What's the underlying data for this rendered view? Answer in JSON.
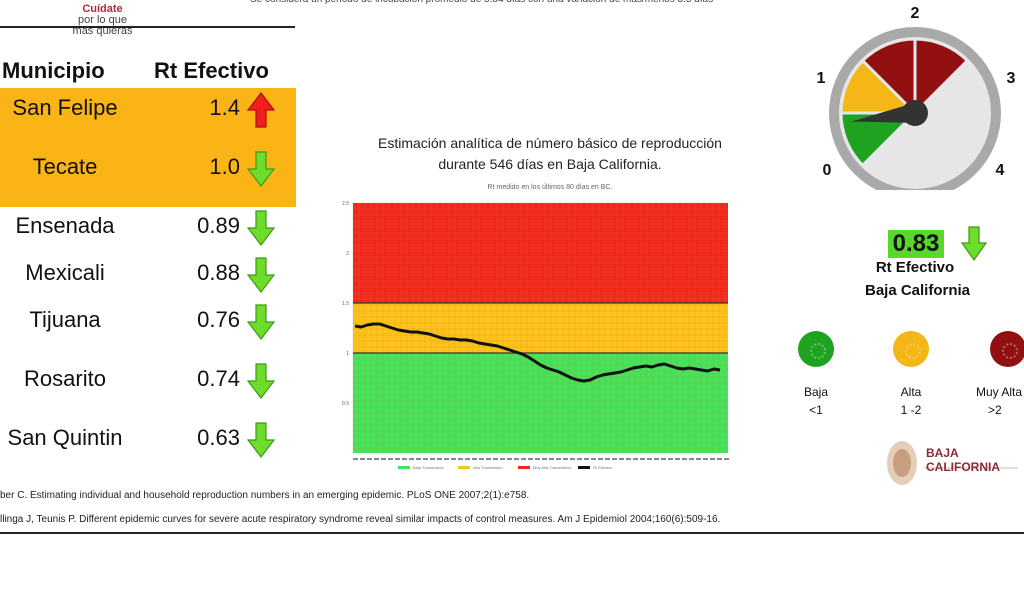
{
  "header": {
    "note": "Se considera un periodo de incubación promedio de 5.84 días con una variación de más/menos 3.5 días",
    "logo_line1": "Cuídate",
    "logo_line2": "por lo que",
    "logo_line3": "más quieras"
  },
  "table": {
    "col_municipio": "Municipio",
    "col_rt": "Rt Efectivo",
    "rows": [
      {
        "name": "San Felipe",
        "rt": "1.4",
        "trend": "up"
      },
      {
        "name": "Tecate",
        "rt": "1.0",
        "trend": "down"
      },
      {
        "name": "Ensenada",
        "rt": "0.89",
        "trend": "down"
      },
      {
        "name": "Mexicali",
        "rt": "0.88",
        "trend": "down"
      },
      {
        "name": "Tijuana",
        "rt": "0.76",
        "trend": "down"
      },
      {
        "name": "Rosarito",
        "rt": "0.74",
        "trend": "down"
      },
      {
        "name": "San Quintin",
        "rt": "0.63",
        "trend": "down"
      }
    ]
  },
  "chart_data": {
    "type": "line",
    "title_line1": "Estimación analítica de número básico de reproducción",
    "title_line2": "durante 546 días en Baja California.",
    "subtitle": "Rt medido en los últimos 80 días en BC.",
    "ylim": [
      0,
      2.5
    ],
    "yticks": [
      "0.5",
      "1",
      "1.5",
      "2",
      "2.5"
    ],
    "bands": [
      {
        "from": 0,
        "to": 1,
        "color": "#44e35b",
        "name": "Baja Transmisión"
      },
      {
        "from": 1,
        "to": 1.5,
        "color": "#ffc21a",
        "name": "Alta Transmisión"
      },
      {
        "from": 1.5,
        "to": 2.5,
        "color": "#f4271f",
        "name": "Muy Alta Transmisión"
      }
    ],
    "series": [
      {
        "name": "Rt Efectivo",
        "values": [
          1.27,
          1.26,
          1.28,
          1.29,
          1.29,
          1.27,
          1.25,
          1.23,
          1.22,
          1.21,
          1.21,
          1.2,
          1.19,
          1.17,
          1.15,
          1.14,
          1.14,
          1.13,
          1.13,
          1.12,
          1.1,
          1.09,
          1.08,
          1.07,
          1.05,
          1.03,
          1.01,
          0.99,
          0.96,
          0.92,
          0.88,
          0.85,
          0.83,
          0.81,
          0.78,
          0.75,
          0.73,
          0.72,
          0.73,
          0.76,
          0.78,
          0.79,
          0.8,
          0.81,
          0.83,
          0.85,
          0.86,
          0.87,
          0.86,
          0.88,
          0.89,
          0.87,
          0.85,
          0.84,
          0.85,
          0.84,
          0.83,
          0.82,
          0.84,
          0.83
        ]
      }
    ],
    "grid": true,
    "legend": "bottom"
  },
  "gauge": {
    "labels": [
      "0",
      "1",
      "2",
      "3",
      "4"
    ],
    "value": 0.83,
    "segments": [
      {
        "color": "#1fa21f"
      },
      {
        "color": "#f4b715"
      },
      {
        "color": "#921010"
      },
      {
        "color": "#921010"
      }
    ]
  },
  "summary": {
    "rt_value": "0.83",
    "rt_label": "Rt Efectivo",
    "region": "Baja California",
    "trend": "down"
  },
  "legend": [
    {
      "label": "Baja",
      "range": "<1",
      "color": "#1fa21f"
    },
    {
      "label": "Alta",
      "range": "1 -2",
      "color": "#f4b715"
    },
    {
      "label": "Muy Alta",
      "range": ">2",
      "color": "#921010"
    }
  ],
  "state_logo": {
    "line1": "BAJA",
    "line2": "CALIFORNIA"
  },
  "references": [
    "ber C. Estimating individual and household reproduction numbers in an emerging epidemic. PLoS ONE 2007;2(1):e758.",
    "llinga J, Teunis P. Different epidemic curves for severe acute respiratory syndrome reveal similar impacts of control measures. Am J Epidemiol 2004;160(6):509-16."
  ],
  "colors": {
    "band": "#fbb416",
    "up": "#f21d1d",
    "down": "#6ddc2a"
  }
}
